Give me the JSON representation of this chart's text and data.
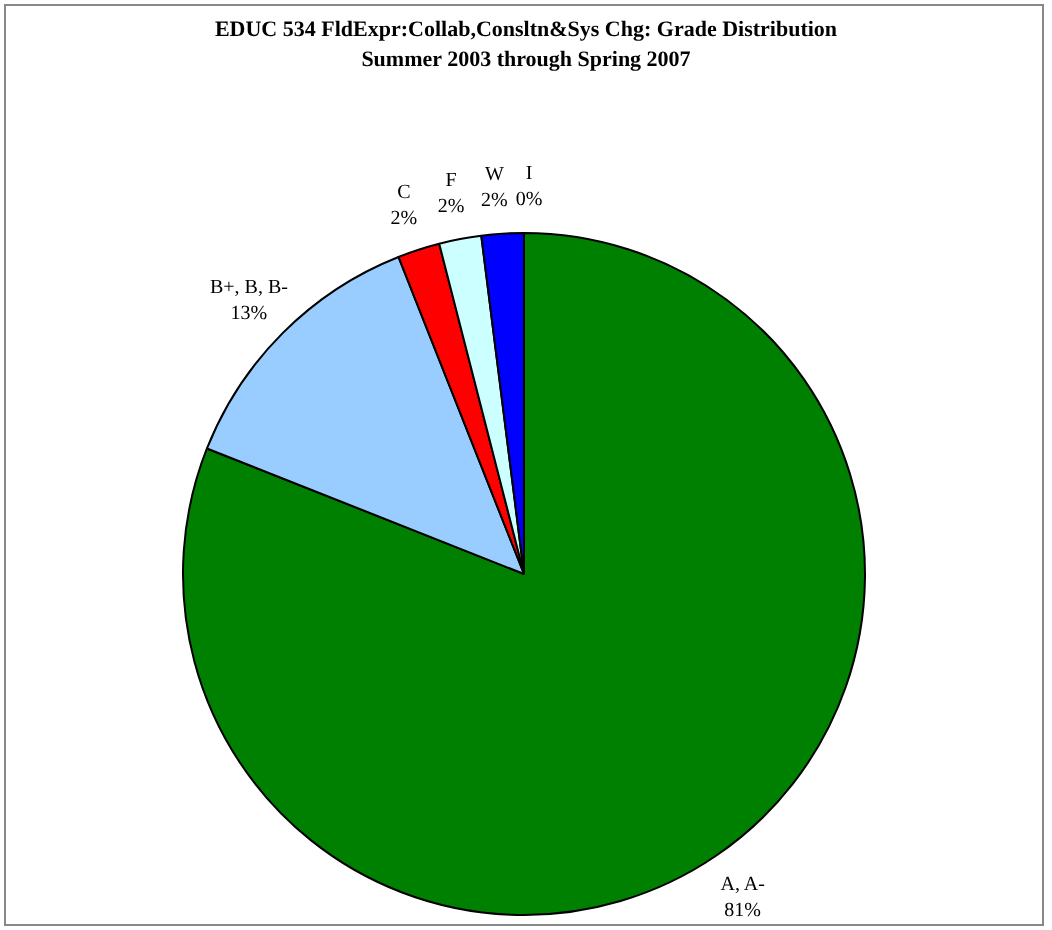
{
  "chart_data": {
    "type": "pie",
    "title": "EDUC 534 FldExpr:Collab,Consltn&Sys Chg: Grade Distribution",
    "subtitle": "Summer 2003 through Spring 2007",
    "categories": [
      "A, A-",
      "B+, B, B-",
      "C",
      "F",
      "W",
      "I"
    ],
    "values": [
      81,
      13,
      2,
      2,
      2,
      0
    ],
    "colors": [
      "#008000",
      "#99ccff",
      "#ff0000",
      "#ccffff",
      "#0000ff",
      "#ffffff"
    ],
    "value_labels": [
      "81%",
      "13%",
      "2%",
      "2%",
      "2%",
      "0%"
    ],
    "legend": false
  }
}
